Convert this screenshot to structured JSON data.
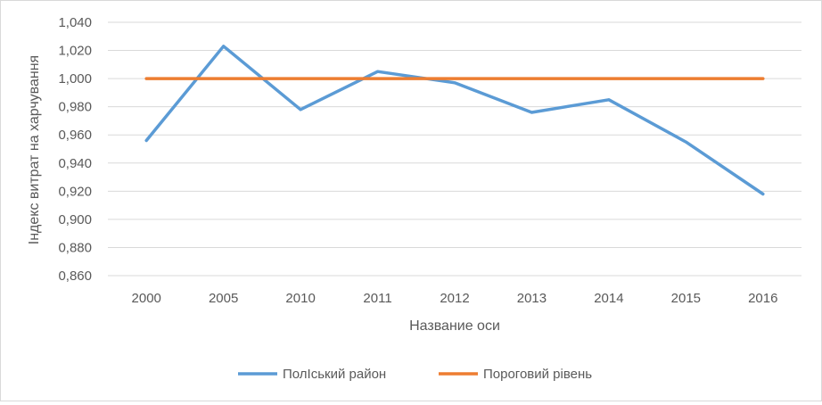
{
  "chart_data": {
    "type": "line",
    "title": "",
    "xlabel": "Название оси",
    "ylabel": "Індекс витрат на харчування",
    "categories": [
      "2000",
      "2005",
      "2010",
      "2011",
      "2012",
      "2013",
      "2014",
      "2015",
      "2016"
    ],
    "ylim": [
      0.86,
      1.04
    ],
    "ytick_step": 0.02,
    "yticks": [
      "0,860",
      "0,880",
      "0,900",
      "0,920",
      "0,940",
      "0,960",
      "0,980",
      "1,000",
      "1,020",
      "1,040"
    ],
    "grid": true,
    "legend_position": "bottom",
    "series": [
      {
        "name": "ПолІський район",
        "color": "#5b9bd5",
        "values": [
          0.956,
          1.023,
          0.978,
          1.005,
          0.997,
          0.976,
          0.985,
          0.955,
          0.918
        ]
      },
      {
        "name": "Пороговий рівень",
        "color": "#ed7d31",
        "values": [
          1.0,
          1.0,
          1.0,
          1.0,
          1.0,
          1.0,
          1.0,
          1.0,
          1.0
        ]
      }
    ]
  }
}
